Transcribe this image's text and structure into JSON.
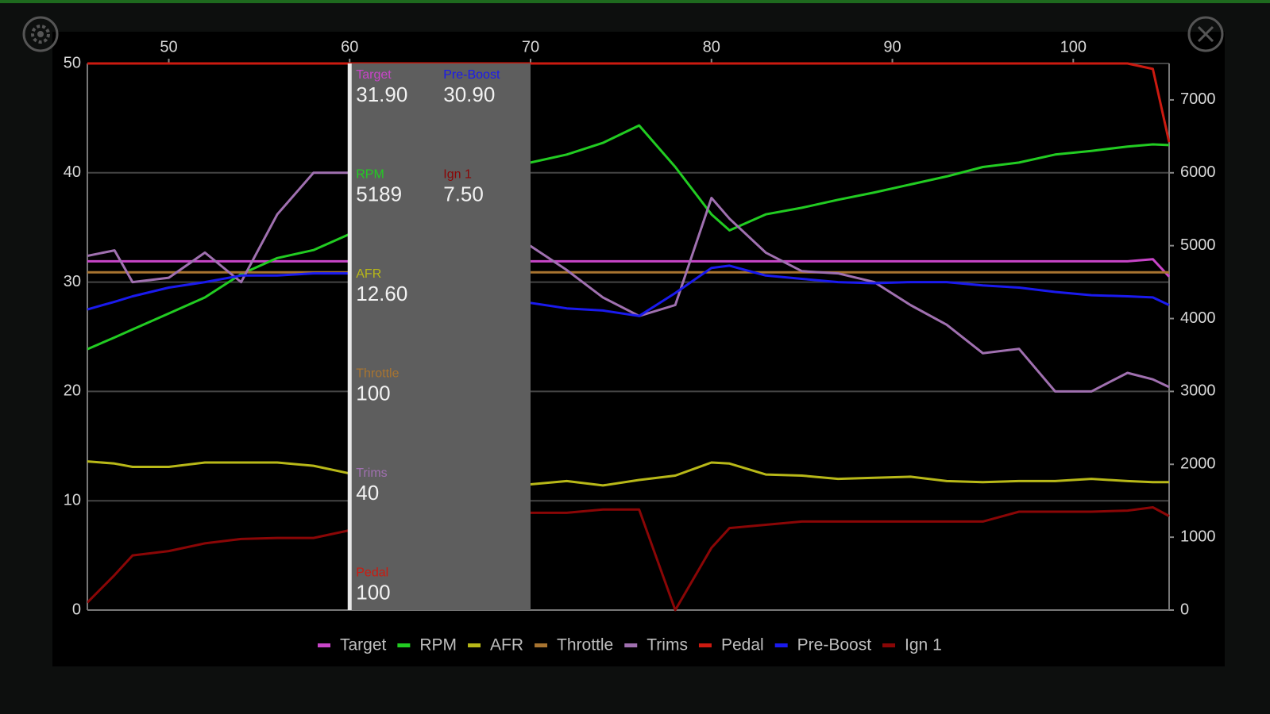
{
  "chart_data": {
    "type": "line",
    "x": [
      45.5,
      47,
      48,
      50,
      52,
      54,
      56,
      58,
      60,
      70,
      72,
      74,
      76,
      78,
      80,
      81,
      83,
      85,
      87,
      89,
      91,
      93,
      95,
      97,
      99,
      101,
      103,
      104.4,
      105.3
    ],
    "xlim": [
      45.5,
      105.3
    ],
    "xticks": [
      50,
      60,
      70,
      80,
      90,
      100
    ],
    "ylim": [
      0,
      50
    ],
    "yticks": [
      0,
      10,
      20,
      30,
      40,
      50
    ],
    "y2lim": [
      0,
      7500
    ],
    "y2ticks": [
      0,
      1000,
      2000,
      3000,
      4000,
      5000,
      6000,
      7000
    ],
    "grid": true,
    "legend": "bottom",
    "series": [
      {
        "name": "Target",
        "color": "#c845c8",
        "values": [
          31.9,
          31.9,
          31.9,
          31.9,
          31.9,
          31.9,
          31.9,
          31.9,
          31.9,
          31.9,
          31.9,
          31.9,
          31.9,
          31.9,
          31.9,
          31.9,
          31.9,
          31.9,
          31.9,
          31.9,
          31.9,
          31.9,
          31.9,
          31.9,
          31.9,
          31.9,
          31.9,
          32.1,
          30.5
        ]
      },
      {
        "name": "RPM",
        "color": "#22cc22",
        "axis": "y2",
        "values": [
          3580,
          3740,
          3850,
          4070,
          4290,
          4610,
          4830,
          4940,
          5160,
          6140,
          6250,
          6410,
          6650,
          6080,
          5430,
          5210,
          5430,
          5520,
          5630,
          5730,
          5840,
          5950,
          6080,
          6140,
          6250,
          6300,
          6360,
          6390,
          6380
        ]
      },
      {
        "name": "AFR",
        "color": "#b8b818",
        "values": [
          13.6,
          13.4,
          13.1,
          13.1,
          13.5,
          13.5,
          13.5,
          13.2,
          12.5,
          11.5,
          11.8,
          11.4,
          11.9,
          12.3,
          13.5,
          13.4,
          12.4,
          12.3,
          12.0,
          12.1,
          12.2,
          11.8,
          11.7,
          11.8,
          11.8,
          12.0,
          11.8,
          11.7,
          11.7
        ]
      },
      {
        "name": "Throttle",
        "color": "#a87430",
        "values": [
          30.9,
          30.9,
          30.9,
          30.9,
          30.9,
          30.9,
          30.9,
          30.9,
          30.9,
          30.9,
          30.9,
          30.9,
          30.9,
          30.9,
          30.9,
          30.9,
          30.9,
          30.9,
          30.9,
          30.9,
          30.9,
          30.9,
          30.9,
          30.9,
          30.9,
          30.9,
          30.9,
          30.9,
          30.9
        ]
      },
      {
        "name": "Trims",
        "color": "#a070b0",
        "values": [
          32.4,
          32.9,
          30.0,
          30.4,
          32.7,
          30.0,
          36.2,
          40.0,
          40.0,
          33.3,
          31.1,
          28.6,
          26.9,
          27.9,
          37.7,
          35.8,
          32.7,
          31.0,
          30.8,
          30.0,
          27.9,
          26.1,
          23.5,
          23.9,
          20.0,
          20.0,
          21.7,
          21.1,
          20.4
        ]
      },
      {
        "name": "Pedal",
        "color": "#cc1a10",
        "values": [
          50,
          50,
          50,
          50,
          50,
          50,
          50,
          50,
          50,
          50,
          50,
          50,
          50,
          50,
          50,
          50,
          50,
          50,
          50,
          50,
          50,
          50,
          50,
          50,
          50,
          50,
          50,
          49.5,
          42.8
        ]
      },
      {
        "name": "Pre-Boost",
        "color": "#1a1aee",
        "values": [
          27.5,
          28.2,
          28.7,
          29.5,
          30.0,
          30.6,
          30.6,
          30.8,
          30.8,
          28.1,
          27.6,
          27.4,
          26.9,
          29.0,
          31.3,
          31.5,
          30.6,
          30.3,
          30.0,
          29.9,
          30.0,
          30.0,
          29.7,
          29.5,
          29.1,
          28.8,
          28.7,
          28.6,
          27.9
        ]
      },
      {
        "name": "Ign 1",
        "color": "#8a0606",
        "values": [
          0.7,
          3.2,
          5.0,
          5.4,
          6.1,
          6.5,
          6.6,
          6.6,
          7.3,
          8.9,
          8.9,
          9.2,
          9.2,
          0,
          5.7,
          7.5,
          7.8,
          8.1,
          8.1,
          8.1,
          8.1,
          8.1,
          8.1,
          9.0,
          9.0,
          9.0,
          9.1,
          9.4,
          8.6
        ]
      }
    ],
    "cursor": {
      "x": 60,
      "x_end": 70,
      "readout": [
        {
          "series": 0,
          "value": "31.90"
        },
        {
          "series": 6,
          "value": "30.90"
        },
        {
          "series": 1,
          "value": "5189"
        },
        {
          "series": 7,
          "value": "7.50"
        },
        {
          "series": 2,
          "value": "12.60"
        },
        {
          "series": 3,
          "value": "100"
        },
        {
          "series": 4,
          "value": "40"
        },
        {
          "series": 5,
          "value": "100"
        }
      ]
    }
  }
}
